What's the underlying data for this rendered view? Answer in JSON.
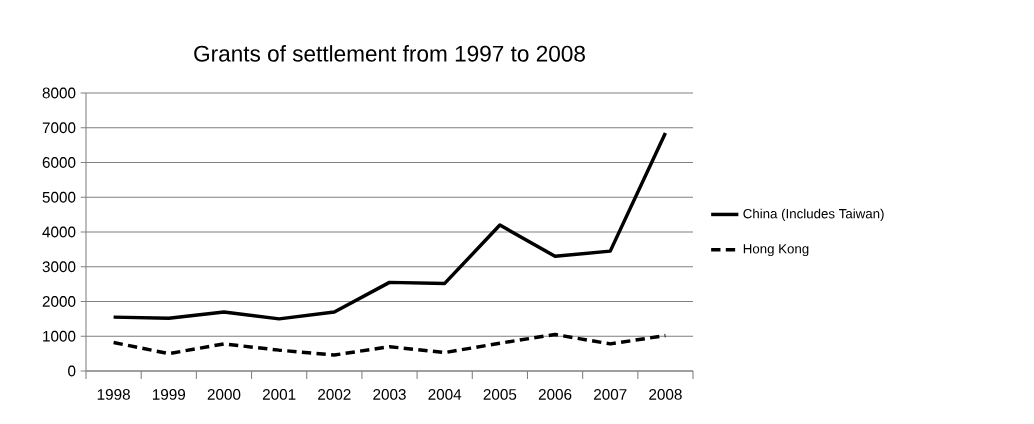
{
  "chart_data": {
    "type": "line",
    "title": "Grants of settlement from 1997 to 2008",
    "categories": [
      "1998",
      "1999",
      "2000",
      "2001",
      "2002",
      "2003",
      "2004",
      "2005",
      "2006",
      "2007",
      "2008"
    ],
    "series": [
      {
        "name": "China (Includes Taiwan)",
        "color": "#000000",
        "line_style": "solid",
        "values": [
          1550,
          1520,
          1700,
          1500,
          1700,
          2550,
          2520,
          4200,
          3300,
          3450,
          6850
        ]
      },
      {
        "name": "Hong Kong",
        "color": "#000000",
        "line_style": "dashed",
        "values": [
          820,
          500,
          780,
          600,
          460,
          700,
          530,
          800,
          1050,
          780,
          1020
        ]
      }
    ],
    "ylim": [
      0,
      8000
    ],
    "yticks": [
      0,
      1000,
      2000,
      3000,
      4000,
      5000,
      6000,
      7000,
      8000
    ],
    "grid": "y",
    "legend": "right",
    "marker": "none"
  }
}
